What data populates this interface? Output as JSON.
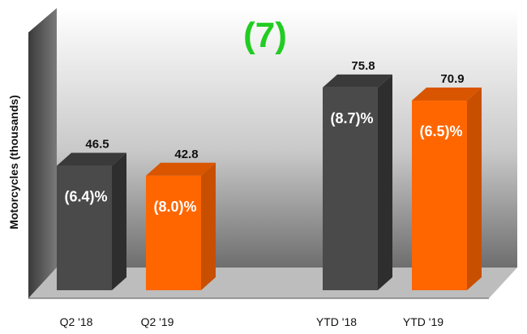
{
  "logo": {
    "text": "(7)",
    "color": "#22cc22"
  },
  "chart_data": {
    "type": "bar",
    "ylabel": "Motorcycles (thousands)",
    "ylim": [
      0,
      80
    ],
    "grid": false,
    "categories": [
      "Q2 '18",
      "Q2 '19",
      "YTD '18",
      "YTD '19"
    ],
    "values": [
      46.5,
      42.8,
      75.8,
      70.9
    ],
    "value_labels": [
      "46.5",
      "42.8",
      "75.8",
      "70.9"
    ],
    "change_labels": [
      "(6.4)%",
      "(8.0)%",
      "(8.7)%",
      "(6.5)%"
    ],
    "colors": [
      "#4a4a4a",
      "#ff6600",
      "#4a4a4a",
      "#ff6600"
    ],
    "side_colors": [
      "#2e2e2e",
      "#c84f00",
      "#2e2e2e",
      "#c84f00"
    ],
    "top_colors": [
      "#3a3a3a",
      "#d95500",
      "#3a3a3a",
      "#d95500"
    ]
  }
}
